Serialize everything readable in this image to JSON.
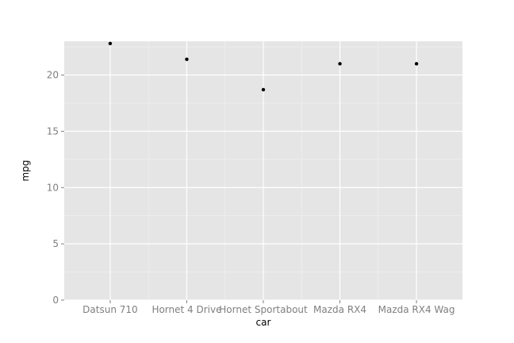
{
  "chart_data": {
    "type": "scatter",
    "title": "",
    "xlabel": "car",
    "ylabel": "mpg",
    "categories": [
      "Datsun 710",
      "Hornet 4 Drive",
      "Hornet Sportabout",
      "Mazda RX4",
      "Mazda RX4 Wag"
    ],
    "values": [
      22.8,
      21.4,
      18.7,
      21.0,
      21.0
    ],
    "y_ticks": [
      0,
      5,
      10,
      15,
      20
    ],
    "ylim": [
      0,
      23
    ],
    "grid": true,
    "legend": "none",
    "colors": {
      "panel_background": "#e5e5e5",
      "major_grid": "#ffffff",
      "minor_grid": "#f2f2f2",
      "point": "#000000",
      "tick_text": "#7f7f7f",
      "tick_mark": "#7f7f7f"
    }
  }
}
